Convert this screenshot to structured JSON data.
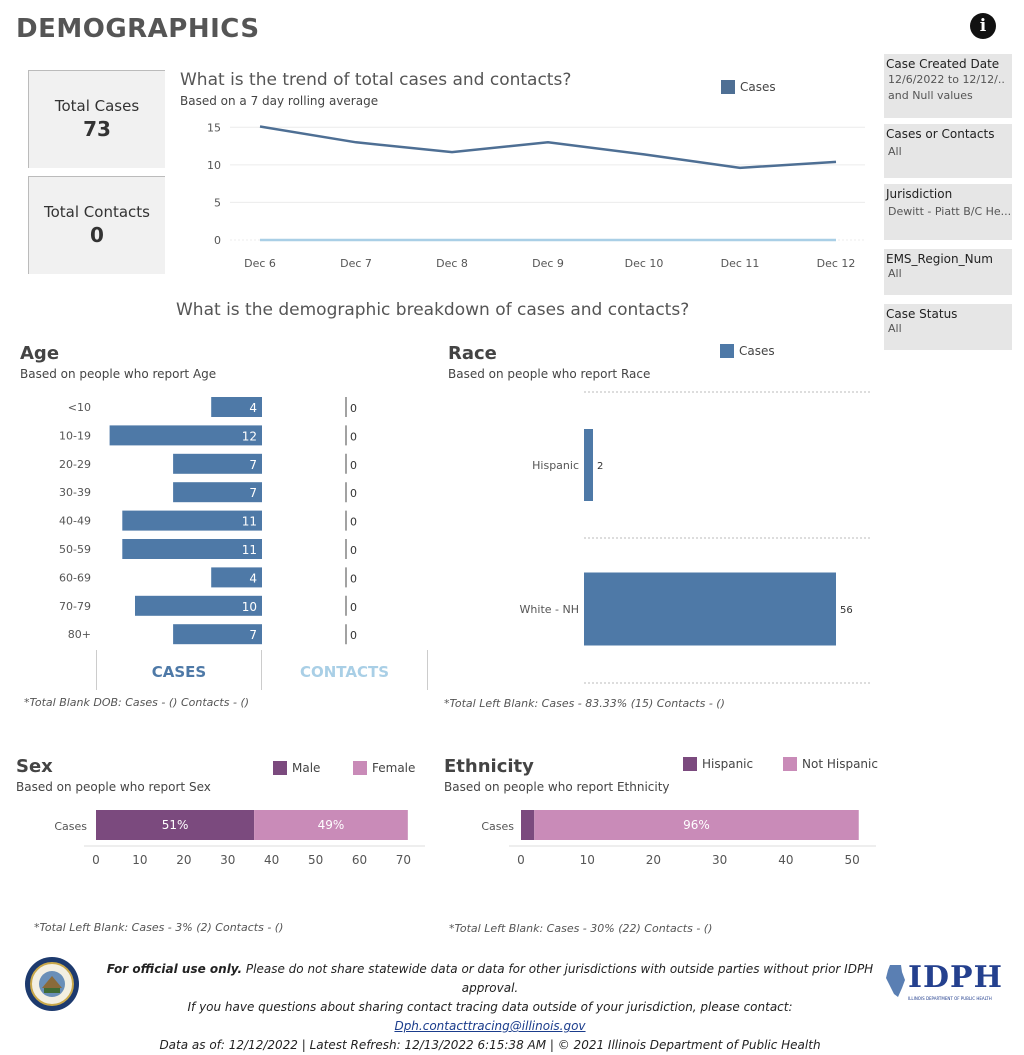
{
  "header": {
    "title": "DEMOGRAPHICS",
    "info_icon": "info-icon"
  },
  "kpis": {
    "total_cases": {
      "label": "Total Cases",
      "value": "73"
    },
    "total_contacts": {
      "label": "Total Contacts",
      "value": "0"
    }
  },
  "filters": [
    {
      "label": "Case Created Date",
      "value": "12/6/2022 to 12/12/..",
      "value2": "and Null values"
    },
    {
      "label": "Cases or Contacts",
      "value": "All"
    },
    {
      "label": "Jurisdiction",
      "value": "Dewitt - Piatt B/C He..."
    },
    {
      "label": "EMS_Region_Num",
      "value": "All"
    },
    {
      "label": "Case Status",
      "value": "All"
    }
  ],
  "trend": {
    "title": "What is the trend of total cases and contacts?",
    "subtitle": "Based on a 7 day rolling average",
    "legend": "Cases",
    "colors": {
      "cases": "#4e6f94",
      "contacts": "#a9cfe6"
    }
  },
  "breakdown_title": "What is the demographic breakdown of cases and contacts?",
  "age": {
    "title": "Age",
    "subtitle": "Based on people who report Age",
    "cases_label": "CASES",
    "contacts_label": "CONTACTS",
    "note": "*Total Blank DOB: Cases -  () Contacts -  ()"
  },
  "race": {
    "title": "Race",
    "subtitle": "Based on people who report Race",
    "legend": "Cases",
    "note": "*Total Left Blank: Cases - 83.33% (15) Contacts -  ()"
  },
  "sex": {
    "title": "Sex",
    "subtitle": "Based on people who report Sex",
    "legend_male": "Male",
    "legend_female": "Female",
    "note": "*Total Left Blank: Cases - 3% (2) Contacts -  ()",
    "colors": {
      "male": "#7b4a7e",
      "female": "#c98bb8"
    }
  },
  "ethnicity": {
    "title": "Ethnicity",
    "subtitle": "Based on people who report Ethnicity",
    "legend_hispanic": "Hispanic",
    "legend_not_hispanic": "Not Hispanic",
    "note": "*Total Left Blank: Cases - 30% (22) Contacts -  ()"
  },
  "footer": {
    "line1_bold": "For official use only.",
    "line1_rest": " Please do not share statewide data or data for other jurisdictions with outside parties without prior IDPH approval.",
    "line2": "If you have questions about sharing contact tracing data outside of your jurisdiction, please contact: ",
    "email": "Dph.contacttracing@illinois.gov",
    "line3": "Data as of: 12/12/2022  |  Latest Refresh: 12/13/2022 6:15:38 AM  |  © 2021 Illinois Department of Public Health",
    "logo_text": "IDPH",
    "logo_subtext": "ILLINOIS DEPARTMENT OF PUBLIC HEALTH"
  },
  "chart_data": [
    {
      "type": "line",
      "x": [
        "Dec 6",
        "Dec 7",
        "Dec 8",
        "Dec 9",
        "Dec 10",
        "Dec 11",
        "Dec 12"
      ],
      "series": [
        {
          "name": "Cases",
          "values": [
            15.1,
            13.0,
            11.7,
            13.0,
            11.4,
            9.6,
            10.4
          ]
        },
        {
          "values": [
            0,
            0,
            0,
            0,
            0,
            0,
            0
          ]
        }
      ],
      "yticks": [
        0,
        5,
        10,
        15
      ],
      "ylim": [
        0,
        16.5
      ],
      "grid": true
    },
    {
      "type": "bar",
      "categories": [
        "<10",
        "10-19",
        "20-29",
        "30-39",
        "40-49",
        "50-59",
        "60-69",
        "70-79",
        "80+"
      ],
      "series": [
        {
          "name": "CASES",
          "values": [
            4,
            12,
            7,
            7,
            11,
            11,
            4,
            10,
            7
          ]
        },
        {
          "name": "CONTACTS",
          "values": [
            0,
            0,
            0,
            0,
            0,
            0,
            0,
            0,
            0
          ]
        }
      ]
    },
    {
      "type": "bar",
      "categories": [
        "Hispanic",
        "White - NH"
      ],
      "series": [
        {
          "name": "Cases",
          "values": [
            2,
            56
          ]
        }
      ]
    },
    {
      "type": "bar",
      "categories": [
        "Cases"
      ],
      "series": [
        {
          "name": "Male",
          "values": [
            36
          ],
          "label": "51%"
        },
        {
          "name": "Female",
          "values": [
            35
          ],
          "label": "49%"
        }
      ],
      "xticks": [
        0,
        10,
        20,
        30,
        40,
        50,
        60,
        70
      ],
      "xlim": [
        0,
        74
      ]
    },
    {
      "type": "bar",
      "categories": [
        "Cases"
      ],
      "series": [
        {
          "name": "Hispanic",
          "values": [
            2
          ]
        },
        {
          "name": "Not Hispanic",
          "values": [
            49
          ],
          "label": "96%"
        }
      ],
      "xticks": [
        0,
        10,
        20,
        30,
        40,
        50
      ],
      "xlim": [
        0,
        53
      ]
    }
  ]
}
